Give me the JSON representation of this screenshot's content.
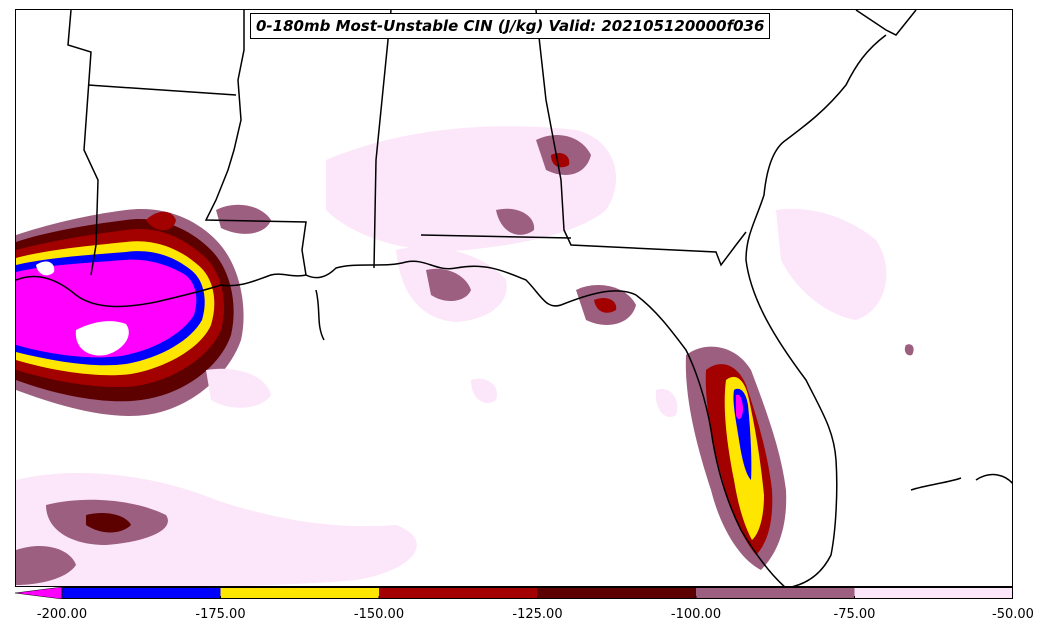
{
  "title": "0-180mb Most-Unstable CIN (J/kg) Valid: 202105120000f036",
  "colorbar": {
    "levels": [
      -200,
      -175,
      -150,
      -125,
      -100,
      -75,
      -50
    ],
    "tick_labels": [
      "-200.00",
      "-175.00",
      "-150.00",
      "-125.00",
      "-100.00",
      "-75.00",
      "-50.00"
    ],
    "colors": [
      "#0000ff",
      "#ffe600",
      "#a30000",
      "#5c0000",
      "#9c5f80",
      "#fce6fa"
    ],
    "under_color": "#ff00ff"
  }
}
